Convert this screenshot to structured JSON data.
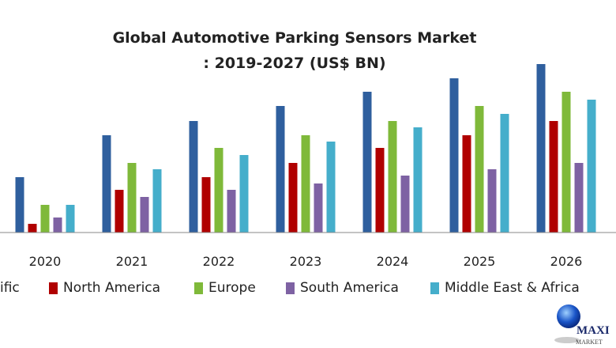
{
  "chart_data": {
    "type": "bar",
    "title": "Global Automotive Parking Sensors Market",
    "subtitle": ": 2019-2027 (US$ BN)",
    "xlabel": "",
    "ylabel": "",
    "categories": [
      "2020",
      "2021",
      "2022",
      "2023",
      "2024",
      "2025",
      "2026"
    ],
    "series": [
      {
        "name": "ific",
        "color": "#2f5f9e",
        "values": [
          7.0,
          12.3,
          14.1,
          16.0,
          17.8,
          19.5,
          21.3
        ]
      },
      {
        "name": "North America",
        "color": "#b00000",
        "values": [
          1.1,
          5.4,
          7.0,
          8.8,
          10.7,
          12.3,
          14.1
        ]
      },
      {
        "name": "Europe",
        "color": "#7fb93a",
        "values": [
          3.5,
          8.8,
          10.7,
          12.3,
          14.1,
          16.0,
          17.8
        ]
      },
      {
        "name": "South America",
        "color": "#7e62a3",
        "values": [
          1.9,
          4.5,
          5.4,
          6.2,
          7.2,
          8.0,
          8.8
        ]
      },
      {
        "name": "Middle East & Africa",
        "color": "#45aecb",
        "values": [
          3.5,
          8.0,
          9.8,
          11.5,
          13.3,
          15.0,
          16.8
        ]
      }
    ],
    "ylim": [
      0,
      22
    ],
    "grid": false,
    "legend": "bottom"
  },
  "logo": {
    "text": "MAXIMIZE",
    "subtext": "MARKET"
  }
}
